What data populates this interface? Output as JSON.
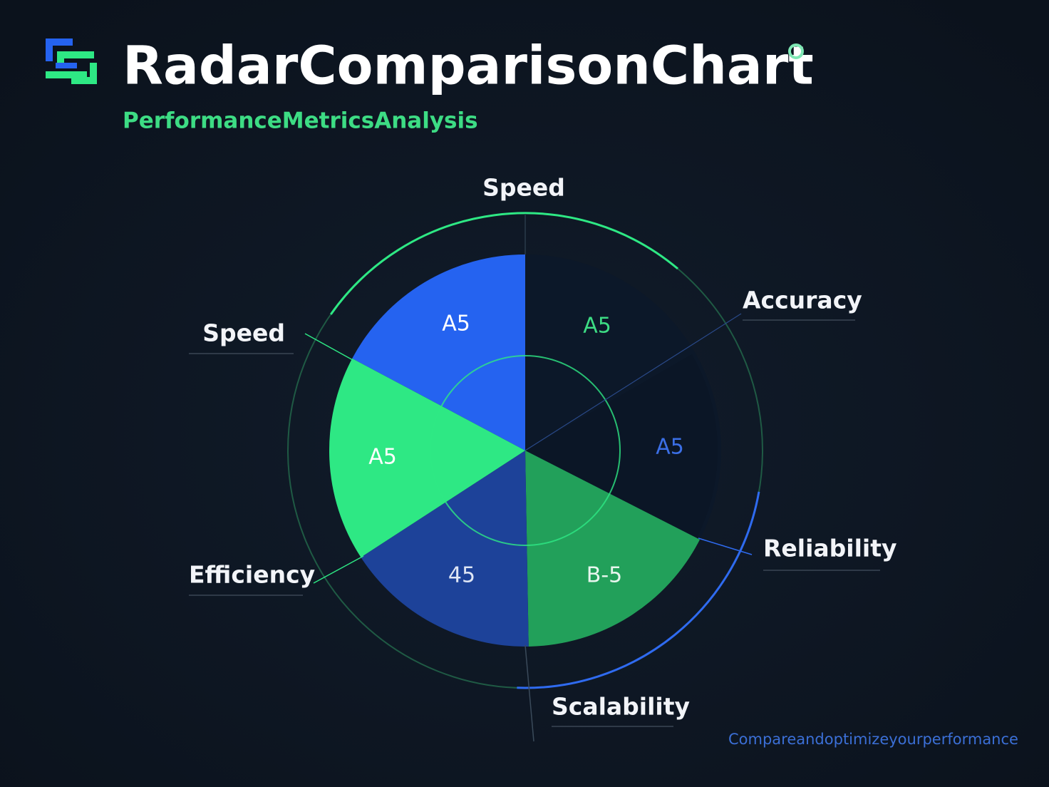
{
  "header": {
    "title": "RadarComparisonChart",
    "subtitle": "PerformanceMetricsAnalysis"
  },
  "axis_labels": [
    "Speed",
    "Accuracy",
    "Reliability",
    "Scalability",
    "Efficiency",
    "Speed"
  ],
  "segments": [
    {
      "label": "A5"
    },
    {
      "label": "A5"
    },
    {
      "label": "A5"
    },
    {
      "label": "B-5"
    },
    {
      "label": "45"
    },
    {
      "label": "A5"
    }
  ],
  "footer": "Compareandoptimizeyourperformance"
}
